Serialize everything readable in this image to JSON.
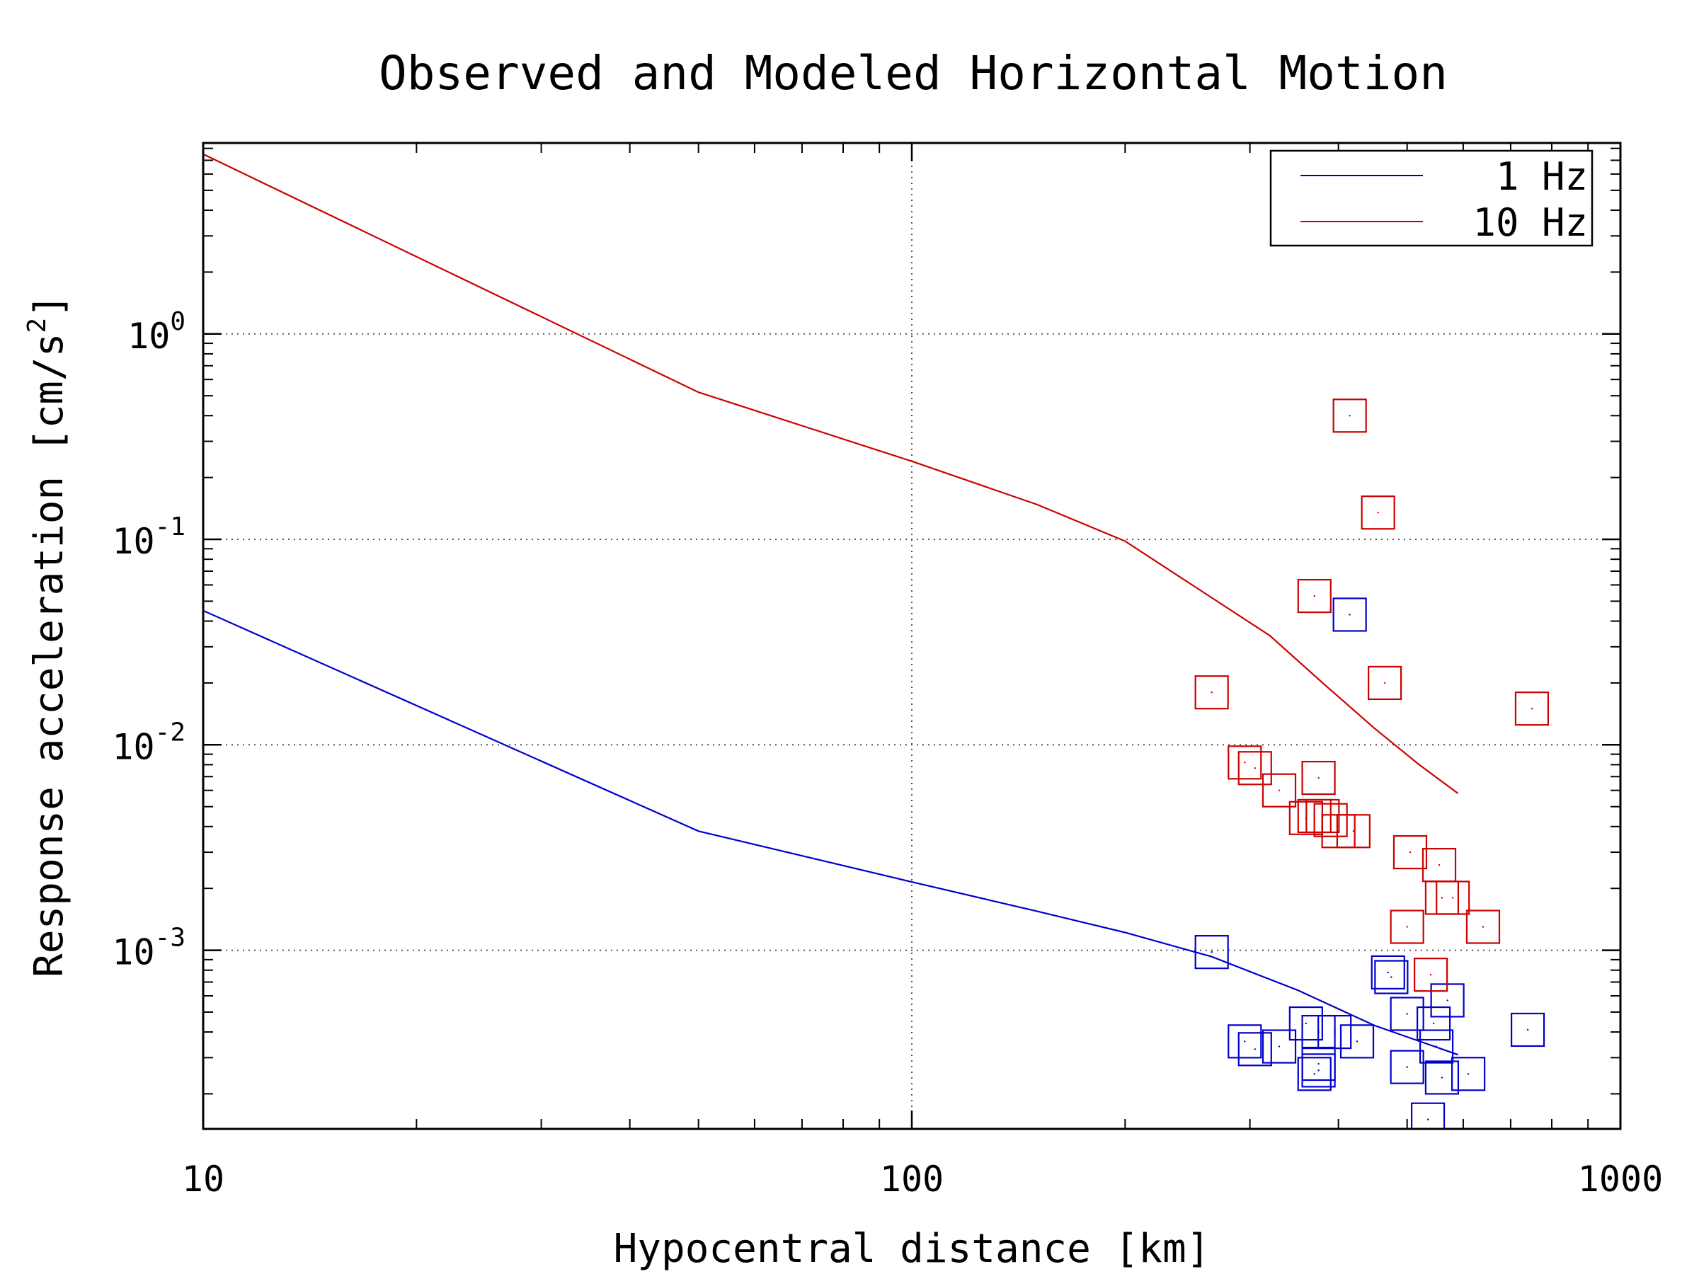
{
  "chart_data": {
    "type": "scatter",
    "title": "Observed and Modeled Horizontal Motion",
    "xlabel": "Hypocentral distance [km]",
    "ylabel": "Response acceleration [cm/s²]",
    "ylabel_parts": {
      "main": "Response acceleration [cm/s",
      "sup": "2",
      "end": "]"
    },
    "xscale": "log",
    "yscale": "log",
    "xlim": [
      10,
      1000
    ],
    "ylim": [
      0.000135,
      8.5
    ],
    "x_ticks": [
      {
        "value": 10,
        "label": "10"
      },
      {
        "value": 100,
        "label": "100"
      },
      {
        "value": 1000,
        "label": "1000"
      }
    ],
    "y_ticks": [
      {
        "value": 1,
        "base": "10",
        "exp": "0"
      },
      {
        "value": 0.1,
        "base": "10",
        "exp": "-1"
      },
      {
        "value": 0.01,
        "base": "10",
        "exp": "-2"
      },
      {
        "value": 0.001,
        "base": "10",
        "exp": "-3"
      }
    ],
    "grid": true,
    "legend_position": "top-right",
    "series": [
      {
        "name": "1 Hz",
        "color": "#0000cc",
        "line": [
          [
            10,
            0.045
          ],
          [
            50,
            0.0038
          ],
          [
            100,
            0.00215
          ],
          [
            150,
            0.00155
          ],
          [
            200,
            0.00122
          ],
          [
            265,
            0.00093
          ],
          [
            350,
            0.00064
          ],
          [
            450,
            0.00043
          ],
          [
            590,
            0.00031
          ]
        ],
        "points": [
          [
            265,
            0.00098
          ],
          [
            415,
            0.043
          ],
          [
            295,
            0.00036
          ],
          [
            305,
            0.00033
          ],
          [
            330,
            0.00034
          ],
          [
            360,
            0.00044
          ],
          [
            375,
            0.0004
          ],
          [
            395,
            0.0004
          ],
          [
            375,
            0.00028
          ],
          [
            375,
            0.00026
          ],
          [
            370,
            0.00025
          ],
          [
            425,
            0.00036
          ],
          [
            470,
            0.00078
          ],
          [
            475,
            0.00074
          ],
          [
            500,
            0.00049
          ],
          [
            500,
            0.00027
          ],
          [
            545,
            0.00044
          ],
          [
            550,
            0.00034
          ],
          [
            570,
            0.00057
          ],
          [
            560,
            0.00024
          ],
          [
            610,
            0.00025
          ],
          [
            535,
            0.00015
          ],
          [
            740,
            0.00041
          ]
        ]
      },
      {
        "name": "10 Hz",
        "color": "#cc0000",
        "line": [
          [
            10,
            7.5
          ],
          [
            50,
            0.52
          ],
          [
            100,
            0.24
          ],
          [
            150,
            0.148
          ],
          [
            200,
            0.098
          ],
          [
            265,
            0.052
          ],
          [
            320,
            0.034
          ],
          [
            380,
            0.02
          ],
          [
            450,
            0.012
          ],
          [
            520,
            0.008
          ],
          [
            590,
            0.0058
          ]
        ],
        "points": [
          [
            265,
            0.018
          ],
          [
            295,
            0.0082
          ],
          [
            305,
            0.0077
          ],
          [
            330,
            0.006
          ],
          [
            360,
            0.0044
          ],
          [
            370,
            0.0045
          ],
          [
            380,
            0.0045
          ],
          [
            390,
            0.0043
          ],
          [
            375,
            0.0069
          ],
          [
            400,
            0.0038
          ],
          [
            420,
            0.0038
          ],
          [
            370,
            0.053
          ],
          [
            415,
            0.4
          ],
          [
            455,
            0.135
          ],
          [
            465,
            0.02
          ],
          [
            505,
            0.003
          ],
          [
            555,
            0.0026
          ],
          [
            560,
            0.0018
          ],
          [
            580,
            0.0018
          ],
          [
            500,
            0.0013
          ],
          [
            640,
            0.0013
          ],
          [
            540,
            0.00076
          ],
          [
            750,
            0.015
          ]
        ]
      }
    ]
  }
}
